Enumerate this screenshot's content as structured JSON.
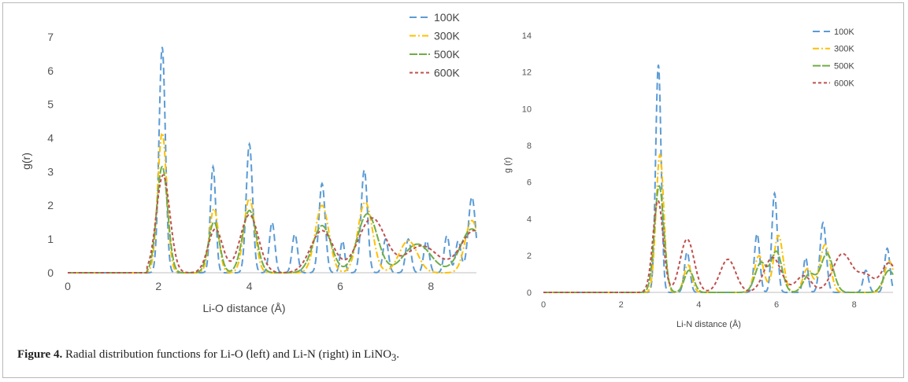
{
  "caption": {
    "label": "Figure 4.",
    "text_before": " Radial distribution functions for Li-O (left) and Li-N (right) in LiNO",
    "subscript": "3",
    "text_after": "."
  },
  "colors": {
    "100K": "#5b9bd5",
    "300K": "#ffc000",
    "500K": "#70ad47",
    "600K": "#c0504d"
  },
  "chart_data": [
    {
      "type": "line",
      "title": "",
      "xlabel": "Li-O distance (Å)",
      "ylabel": "g(r)",
      "xlim": [
        0,
        9
      ],
      "ylim": [
        0,
        7
      ],
      "xticks": [
        0,
        2,
        4,
        6,
        8
      ],
      "yticks": [
        0,
        1,
        2,
        3,
        4,
        5,
        6,
        7
      ],
      "grid": false,
      "legend_position": "top-right",
      "series": [
        {
          "name": "100K",
          "peaks": [
            [
              2.08,
              6.7,
              0.07
            ],
            [
              3.2,
              3.15,
              0.06
            ],
            [
              4.0,
              3.82,
              0.07
            ],
            [
              4.5,
              1.5,
              0.06
            ],
            [
              5.0,
              1.15,
              0.06
            ],
            [
              5.6,
              2.65,
              0.07
            ],
            [
              6.05,
              0.95,
              0.05
            ],
            [
              6.53,
              3.05,
              0.07
            ],
            [
              7.0,
              1.0,
              0.06
            ],
            [
              7.5,
              1.0,
              0.06
            ],
            [
              7.9,
              0.95,
              0.06
            ],
            [
              8.35,
              1.1,
              0.06
            ],
            [
              8.6,
              0.95,
              0.06
            ],
            [
              8.9,
              2.25,
              0.08
            ]
          ]
        },
        {
          "name": "300K",
          "peaks": [
            [
              2.08,
              4.15,
              0.1
            ],
            [
              3.22,
              1.9,
              0.1
            ],
            [
              4.0,
              2.2,
              0.12
            ],
            [
              5.6,
              2.0,
              0.15
            ],
            [
              6.55,
              2.1,
              0.16
            ],
            [
              7.5,
              0.95,
              0.2
            ],
            [
              8.9,
              1.55,
              0.15
            ]
          ]
        },
        {
          "name": "500K",
          "peaks": [
            [
              2.08,
              3.15,
              0.12
            ],
            [
              3.22,
              1.5,
              0.12
            ],
            [
              4.0,
              1.85,
              0.15
            ],
            [
              5.6,
              1.4,
              0.2
            ],
            [
              6.6,
              1.75,
              0.22
            ],
            [
              7.7,
              0.85,
              0.3
            ],
            [
              8.9,
              1.3,
              0.25
            ]
          ]
        },
        {
          "name": "600K",
          "peaks": [
            [
              2.1,
              2.9,
              0.15
            ],
            [
              3.25,
              1.3,
              0.16
            ],
            [
              4.0,
              1.72,
              0.2
            ],
            [
              5.6,
              1.25,
              0.25
            ],
            [
              6.7,
              1.62,
              0.3
            ],
            [
              7.8,
              0.8,
              0.35
            ],
            [
              8.95,
              1.25,
              0.3
            ]
          ]
        }
      ]
    },
    {
      "type": "line",
      "title": "",
      "xlabel": "Li-N distance (Å)",
      "ylabel": "g (r)",
      "xlim": [
        0,
        9
      ],
      "ylim": [
        0,
        14
      ],
      "xticks": [
        0,
        2,
        4,
        6,
        8
      ],
      "yticks": [
        0,
        2,
        4,
        6,
        8,
        10,
        12,
        14
      ],
      "grid": false,
      "legend_position": "top-right",
      "series": [
        {
          "name": "100K",
          "peaks": [
            [
              2.96,
              12.4,
              0.07
            ],
            [
              3.7,
              2.2,
              0.07
            ],
            [
              5.5,
              3.2,
              0.07
            ],
            [
              5.95,
              5.4,
              0.07
            ],
            [
              6.75,
              1.9,
              0.06
            ],
            [
              7.2,
              3.8,
              0.08
            ],
            [
              8.3,
              1.2,
              0.07
            ],
            [
              8.85,
              2.4,
              0.07
            ]
          ]
        },
        {
          "name": "300K",
          "peaks": [
            [
              3.0,
              7.5,
              0.1
            ],
            [
              3.72,
              1.5,
              0.1
            ],
            [
              5.55,
              2.0,
              0.12
            ],
            [
              6.05,
              3.1,
              0.12
            ],
            [
              6.8,
              1.3,
              0.12
            ],
            [
              7.25,
              2.6,
              0.13
            ],
            [
              8.9,
              1.7,
              0.12
            ]
          ]
        },
        {
          "name": "500K",
          "peaks": [
            [
              2.98,
              5.8,
              0.12
            ],
            [
              3.75,
              1.2,
              0.12
            ],
            [
              5.6,
              1.6,
              0.15
            ],
            [
              6.0,
              2.2,
              0.14
            ],
            [
              6.85,
              1.0,
              0.15
            ],
            [
              7.3,
              2.1,
              0.16
            ],
            [
              8.9,
              1.2,
              0.15
            ]
          ]
        },
        {
          "name": "600K",
          "peaks": [
            [
              2.95,
              5.0,
              0.13
            ],
            [
              3.7,
              2.9,
              0.18
            ],
            [
              4.75,
              1.8,
              0.2
            ],
            [
              5.9,
              1.9,
              0.22
            ],
            [
              6.7,
              0.9,
              0.2
            ],
            [
              7.7,
              2.1,
              0.25
            ],
            [
              8.3,
              0.9,
              0.2
            ],
            [
              8.9,
              1.6,
              0.2
            ]
          ]
        }
      ]
    }
  ]
}
